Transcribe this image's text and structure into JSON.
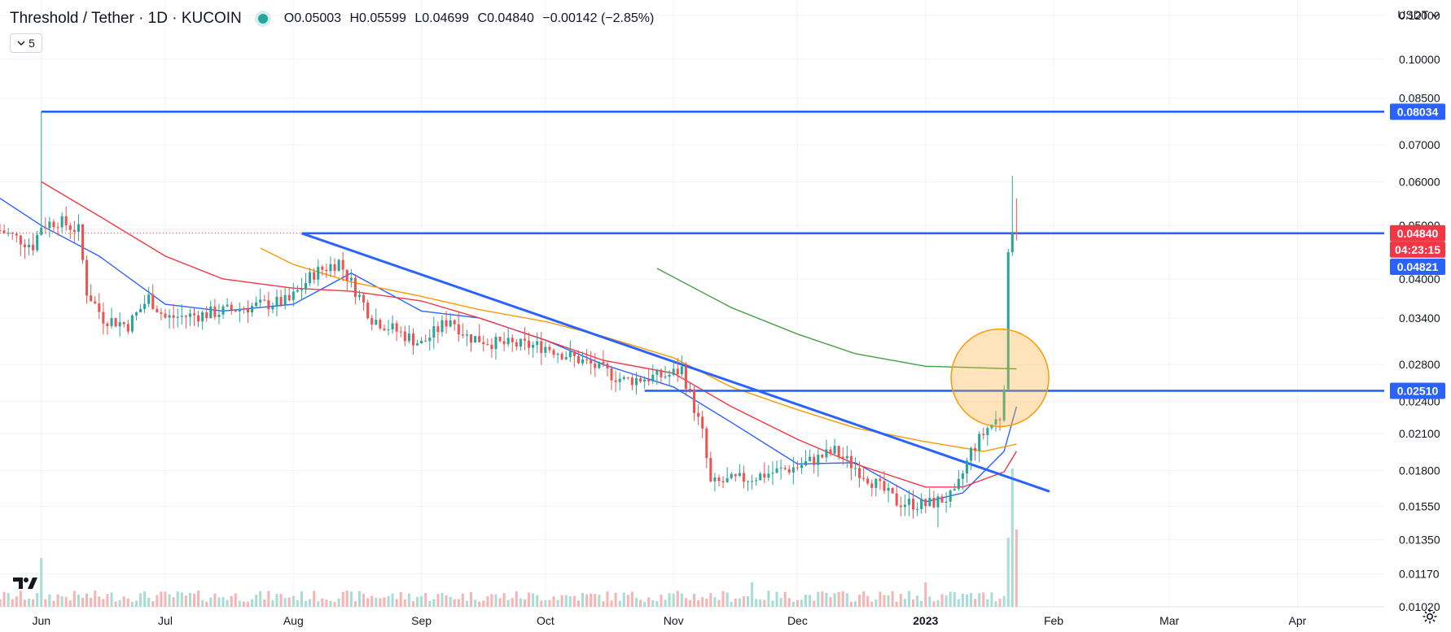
{
  "header": {
    "title": "Threshold / Tether · 1D · KUCOIN",
    "ohlc": {
      "open": "O0.05003",
      "high": "H0.05599",
      "low": "L0.04699",
      "close": "C0.04840",
      "change": "−0.00142 (−2.85%)"
    },
    "indicator_count": "5",
    "currency": "USDT",
    "status_color": "#26a69a"
  },
  "icons": {
    "chevron": "chevron-down-icon",
    "logo": "tradingview-logo-icon",
    "settings": "gear-icon"
  },
  "colors": {
    "up": "#26a69a",
    "down": "#ef5350",
    "trendline": "#2962ff",
    "ma_blue": "#2962ff",
    "ma_red": "#f23645",
    "ma_orange": "#ff9800",
    "ma_green": "#43a047"
  },
  "chart_data": {
    "type": "candlestick",
    "x_range": [
      "2022-05-22",
      "2023-04-22"
    ],
    "y_range": [
      0.0102,
      0.128
    ],
    "y_scale": "log",
    "x_ticks": [
      {
        "label": "Jun",
        "date": "2022-06-01"
      },
      {
        "label": "Jul",
        "date": "2022-07-01"
      },
      {
        "label": "Aug",
        "date": "2022-08-01"
      },
      {
        "label": "Sep",
        "date": "2022-09-01"
      },
      {
        "label": "Oct",
        "date": "2022-10-01"
      },
      {
        "label": "Nov",
        "date": "2022-11-01"
      },
      {
        "label": "Dec",
        "date": "2022-12-01"
      },
      {
        "label": "2023",
        "date": "2023-01-01"
      },
      {
        "label": "Feb",
        "date": "2023-02-01"
      },
      {
        "label": "Mar",
        "date": "2023-03-01"
      },
      {
        "label": "Apr",
        "date": "2023-04-01"
      }
    ],
    "y_ticks": [
      "0.12000",
      "0.10000",
      "0.08500",
      "0.07000",
      "0.06000",
      "0.05000",
      "0.04000",
      "0.03400",
      "0.02800",
      "0.02400",
      "0.02100",
      "0.01800",
      "0.01550",
      "0.01350",
      "0.01170",
      "0.01020"
    ],
    "price_labels": [
      {
        "value": 0.08034,
        "text": "0.08034",
        "color": "#2962ff"
      },
      {
        "value": 0.0484,
        "text": "0.04840",
        "color": "#f23645"
      },
      {
        "value": 0.0484,
        "text": "04:23:15",
        "color": "#f23645"
      },
      {
        "value": 0.04821,
        "text": "0.04821",
        "color": "#2962ff"
      },
      {
        "value": 0.0251,
        "text": "0.02510",
        "color": "#2962ff"
      }
    ],
    "horizontal_lines": [
      {
        "value": 0.08034,
        "from": "2022-06-01",
        "to": "2023-04-22"
      },
      {
        "value": 0.0484,
        "from": "2022-08-03",
        "to": "2023-04-22"
      },
      {
        "value": 0.0251,
        "from": "2022-10-25",
        "to": "2023-04-22"
      }
    ],
    "trendline": [
      {
        "date": "2022-08-03",
        "value": 0.0484
      },
      {
        "date": "2023-01-31",
        "value": 0.0165
      }
    ],
    "highlight_circle": {
      "date": "2023-01-19",
      "value": 0.0265
    },
    "moving_averages": [
      {
        "color": "#2962ff",
        "points": [
          [
            "2022-05-22",
            0.056
          ],
          [
            "2022-06-01",
            0.05
          ],
          [
            "2022-06-15",
            0.044
          ],
          [
            "2022-07-01",
            0.036
          ],
          [
            "2022-07-15",
            0.035
          ],
          [
            "2022-08-01",
            0.036
          ],
          [
            "2022-08-15",
            0.041
          ],
          [
            "2022-09-01",
            0.035
          ],
          [
            "2022-09-15",
            0.034
          ],
          [
            "2022-10-01",
            0.031
          ],
          [
            "2022-10-15",
            0.028
          ],
          [
            "2022-11-01",
            0.0255
          ],
          [
            "2022-11-15",
            0.022
          ],
          [
            "2022-12-01",
            0.0185
          ],
          [
            "2022-12-15",
            0.0186
          ],
          [
            "2023-01-01",
            0.0158
          ],
          [
            "2023-01-10",
            0.0164
          ],
          [
            "2023-01-20",
            0.0195
          ],
          [
            "2023-01-23",
            0.0235
          ]
        ]
      },
      {
        "color": "#f23645",
        "points": [
          [
            "2022-06-01",
            0.06
          ],
          [
            "2022-06-15",
            0.052
          ],
          [
            "2022-07-01",
            0.044
          ],
          [
            "2022-07-15",
            0.04
          ],
          [
            "2022-08-01",
            0.0385
          ],
          [
            "2022-08-15",
            0.038
          ],
          [
            "2022-09-01",
            0.0365
          ],
          [
            "2022-09-15",
            0.034
          ],
          [
            "2022-10-01",
            0.031
          ],
          [
            "2022-10-15",
            0.0285
          ],
          [
            "2022-11-01",
            0.027
          ],
          [
            "2022-11-15",
            0.0235
          ],
          [
            "2022-12-01",
            0.0205
          ],
          [
            "2022-12-15",
            0.0185
          ],
          [
            "2023-01-01",
            0.0168
          ],
          [
            "2023-01-10",
            0.0168
          ],
          [
            "2023-01-20",
            0.0179
          ],
          [
            "2023-01-23",
            0.0195
          ]
        ]
      },
      {
        "color": "#ff9800",
        "points": [
          [
            "2022-07-24",
            0.0455
          ],
          [
            "2022-08-01",
            0.0425
          ],
          [
            "2022-08-15",
            0.0395
          ],
          [
            "2022-09-01",
            0.0372
          ],
          [
            "2022-09-15",
            0.0352
          ],
          [
            "2022-10-01",
            0.0335
          ],
          [
            "2022-10-15",
            0.0315
          ],
          [
            "2022-11-01",
            0.0288
          ],
          [
            "2022-11-15",
            0.0255
          ],
          [
            "2022-12-01",
            0.0232
          ],
          [
            "2022-12-15",
            0.0215
          ],
          [
            "2023-01-01",
            0.0203
          ],
          [
            "2023-01-15",
            0.0195
          ],
          [
            "2023-01-23",
            0.0201
          ]
        ]
      },
      {
        "color": "#43a047",
        "points": [
          [
            "2022-10-28",
            0.0418
          ],
          [
            "2022-11-15",
            0.0355
          ],
          [
            "2022-12-01",
            0.0318
          ],
          [
            "2022-12-15",
            0.0293
          ],
          [
            "2023-01-01",
            0.0278
          ],
          [
            "2023-01-23",
            0.0275
          ]
        ]
      }
    ],
    "candles_anchor": [
      [
        "2022-05-22",
        0.049
      ],
      [
        "2022-05-30",
        0.046
      ],
      [
        "2022-06-01",
        0.05
      ],
      [
        "2022-06-05",
        0.051
      ],
      [
        "2022-06-10",
        0.049
      ],
      [
        "2022-06-12",
        0.038
      ],
      [
        "2022-06-16",
        0.034
      ],
      [
        "2022-06-22",
        0.033
      ],
      [
        "2022-06-27",
        0.037
      ],
      [
        "2022-07-01",
        0.034
      ],
      [
        "2022-07-10",
        0.0345
      ],
      [
        "2022-07-20",
        0.0355
      ],
      [
        "2022-07-31",
        0.0365
      ],
      [
        "2022-08-06",
        0.041
      ],
      [
        "2022-08-12",
        0.043
      ],
      [
        "2022-08-20",
        0.034
      ],
      [
        "2022-09-01",
        0.0305
      ],
      [
        "2022-09-08",
        0.034
      ],
      [
        "2022-09-12",
        0.0315
      ],
      [
        "2022-09-20",
        0.0305
      ],
      [
        "2022-10-01",
        0.0302
      ],
      [
        "2022-10-12",
        0.028
      ],
      [
        "2022-10-20",
        0.0262
      ],
      [
        "2022-10-31",
        0.0268
      ],
      [
        "2022-11-03",
        0.0275
      ],
      [
        "2022-11-08",
        0.021
      ],
      [
        "2022-11-10",
        0.017
      ],
      [
        "2022-11-20",
        0.0175
      ],
      [
        "2022-12-01",
        0.0183
      ],
      [
        "2022-12-10",
        0.0195
      ],
      [
        "2022-12-18",
        0.0175
      ],
      [
        "2022-12-25",
        0.0158
      ],
      [
        "2023-01-01",
        0.0156
      ],
      [
        "2023-01-08",
        0.0162
      ],
      [
        "2023-01-12",
        0.0195
      ],
      [
        "2023-01-16",
        0.0215
      ],
      [
        "2023-01-19",
        0.0225
      ],
      [
        "2023-01-20",
        0.026
      ],
      [
        "2023-01-21",
        0.0435
      ],
      [
        "2023-01-22",
        0.0498
      ],
      [
        "2023-01-23",
        0.0484
      ]
    ]
  }
}
